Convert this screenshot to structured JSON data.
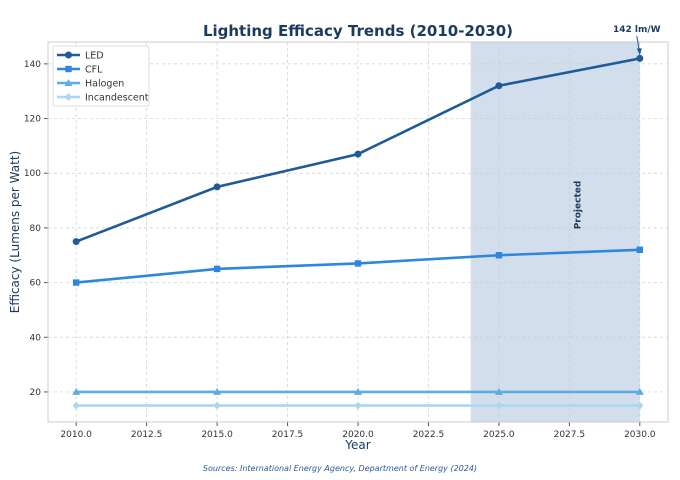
{
  "chart_data": {
    "type": "line",
    "title": "Lighting Efficacy Trends (2010-2030)",
    "xlabel": "Year",
    "ylabel": "Efficacy (Lumens per Watt)",
    "xlim": [
      2009,
      2031
    ],
    "ylim": [
      9,
      148
    ],
    "xticks": [
      2010,
      2012.5,
      2015,
      2017.5,
      2020,
      2022.5,
      2025,
      2027.5,
      2030
    ],
    "xtick_labels": [
      "2010.0",
      "2012.5",
      "2015.0",
      "2017.5",
      "2020.0",
      "2022.5",
      "2025.0",
      "2027.5",
      "2030.0"
    ],
    "yticks": [
      20,
      40,
      60,
      80,
      100,
      120,
      140
    ],
    "grid": true,
    "legend_placement": "top-left",
    "x": [
      2010,
      2015,
      2020,
      2025,
      2030
    ],
    "series": [
      {
        "name": "LED",
        "values": [
          75,
          95,
          107,
          132,
          142
        ],
        "color": "#1f5a9a",
        "marker": "circle"
      },
      {
        "name": "CFL",
        "values": [
          60,
          65,
          67,
          70,
          72
        ],
        "color": "#2e86de",
        "marker": "square"
      },
      {
        "name": "Halogen",
        "values": [
          20,
          20,
          20,
          20,
          20
        ],
        "color": "#5dade2",
        "marker": "triangle"
      },
      {
        "name": "Incandescent",
        "values": [
          15,
          15,
          15,
          15,
          15
        ],
        "color": "#aed6f1",
        "marker": "diamond"
      }
    ],
    "shaded_region": {
      "x_range": [
        2024,
        2030
      ],
      "label": "Projected",
      "color": "#d0dcea"
    },
    "annotation": {
      "text": "142 lm/W",
      "x": 2030,
      "y": 142
    },
    "source": "Sources: International Energy Agency, Department of Energy (2024)"
  }
}
